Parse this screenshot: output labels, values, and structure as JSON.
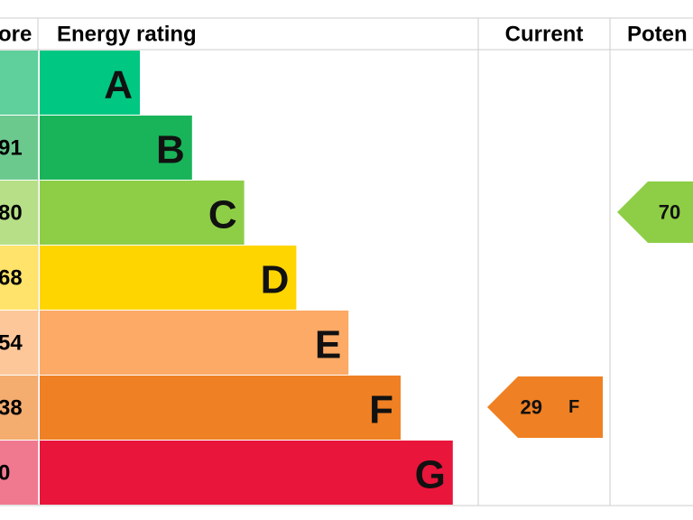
{
  "header": {
    "score": "ore",
    "rating": "Energy rating",
    "current": "Current",
    "potential": "Poten"
  },
  "bands": [
    {
      "letter": "A",
      "color": "#00c781",
      "score_color": "#5fcf9c"
    },
    {
      "letter": "B",
      "score": "91",
      "color": "#19b459",
      "score_color": "#6cc98e"
    },
    {
      "letter": "C",
      "score": "80",
      "color": "#8dce46",
      "score_color": "#b7df87"
    },
    {
      "letter": "D",
      "score": "68",
      "color": "#ffd500",
      "score_color": "#ffe36a"
    },
    {
      "letter": "E",
      "score": "54",
      "color": "#fcaa65",
      "score_color": "#fdc79a"
    },
    {
      "letter": "F",
      "score": "38",
      "color": "#ef8023",
      "score_color": "#f4ac6f"
    },
    {
      "letter": "G",
      "score": "0",
      "color": "#e9153b",
      "score_color": "#f0798f"
    }
  ],
  "current": {
    "value": 29,
    "band": "F"
  },
  "potential": {
    "value": 70
  }
}
